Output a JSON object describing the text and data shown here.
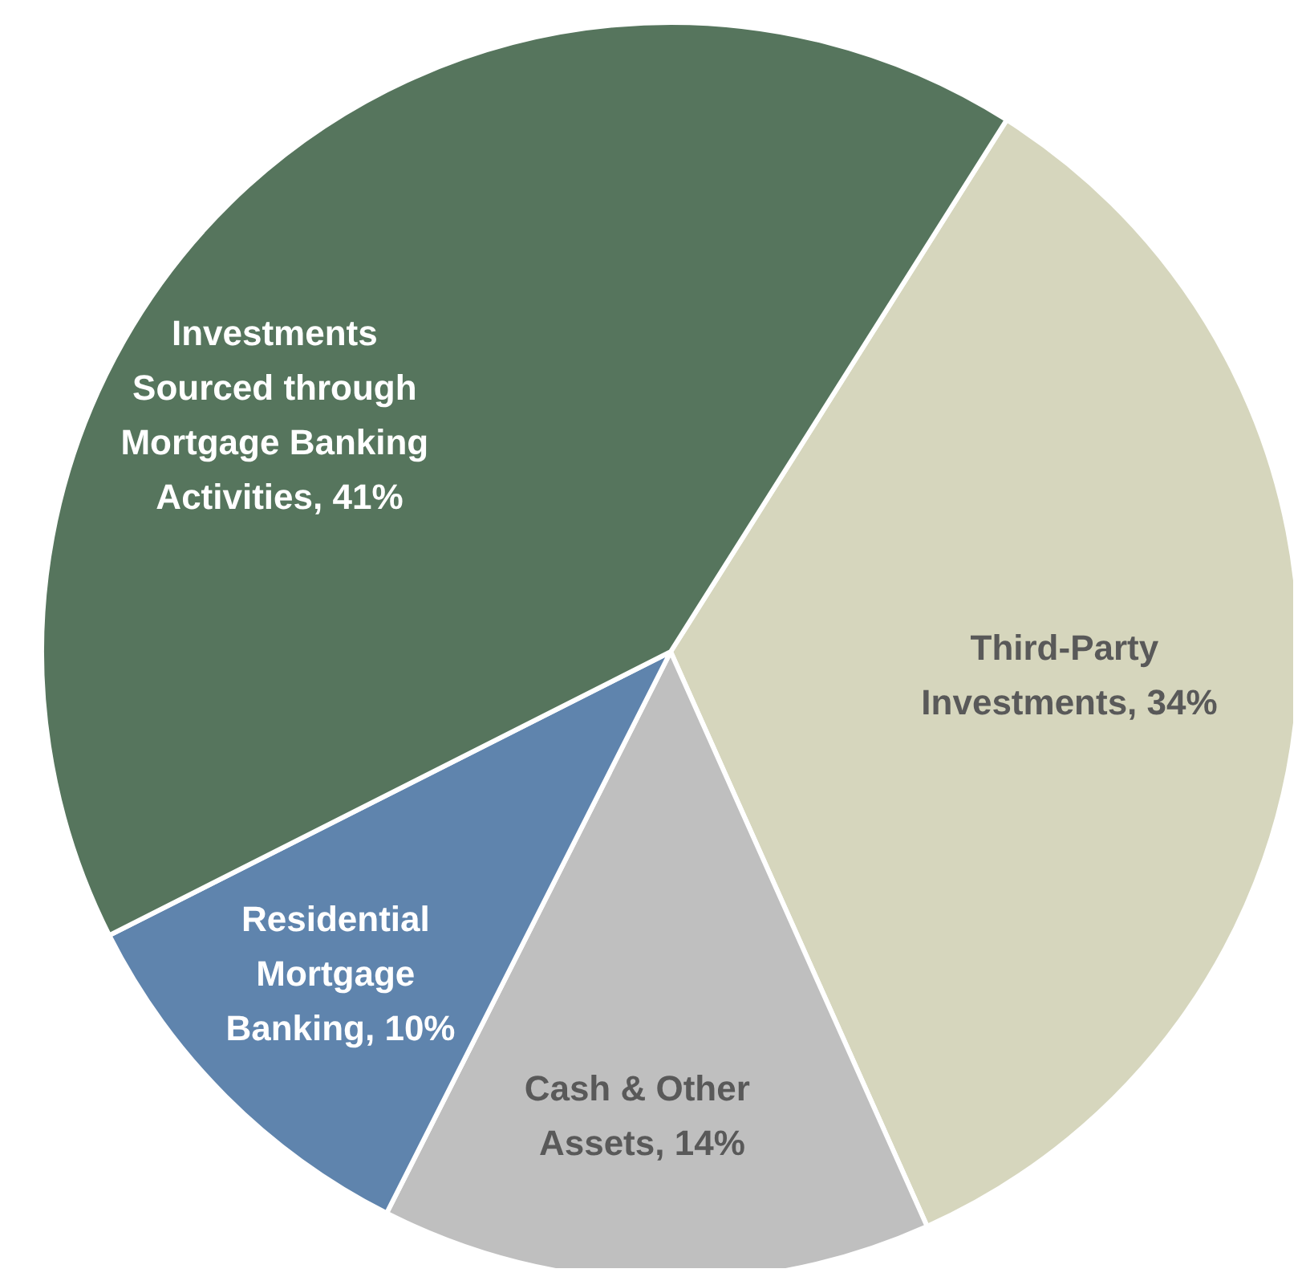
{
  "chart_data": {
    "type": "pie",
    "categories": [
      "Third-Party Investments",
      "Cash & Other Assets",
      "Residential Mortgage Banking",
      "Investments Sourced through Mortgage Banking Activities"
    ],
    "value_labels": [
      "34%",
      "14%",
      "10%",
      "41%"
    ],
    "values": [
      34,
      14,
      10,
      41
    ],
    "colors": [
      "#d6d6bd",
      "#bfbfbf",
      "#5f84ad",
      "#56755d"
    ],
    "legend": false
  }
}
